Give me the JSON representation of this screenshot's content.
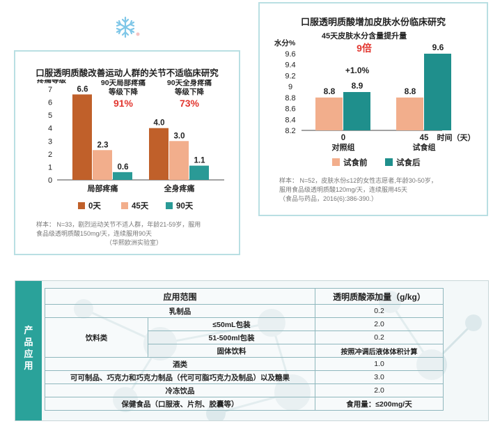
{
  "chart_data": [
    {
      "type": "bar",
      "title": "口服透明质酸改善运动人群的关节不适临床研究",
      "ylabel": "疼痛等级",
      "yticks": [
        "7",
        "6",
        "5",
        "4",
        "3",
        "2",
        "1",
        "0"
      ],
      "ylim": [
        0,
        7
      ],
      "categories": [
        "局部疼痛",
        "全身疼痛"
      ],
      "series": [
        {
          "name": "0天",
          "values": [
            6.6,
            4.0
          ],
          "labels": [
            "6.6",
            "4.0"
          ],
          "color": "#c0602a"
        },
        {
          "name": "45天",
          "values": [
            2.3,
            3.0
          ],
          "labels": [
            "2.3",
            "3.0"
          ],
          "color": "#f2ae8c"
        },
        {
          "name": "90天",
          "values": [
            0.6,
            1.1
          ],
          "labels": [
            "0.6",
            "1.1"
          ],
          "color": "#2a9a96"
        }
      ],
      "annotations": [
        {
          "text": "90天局部疼痛",
          "text2": "等级下降",
          "value": "91%"
        },
        {
          "text": "90天全身疼痛",
          "text2": "等级下降",
          "value": "73%"
        }
      ],
      "legend": "bottom",
      "notes": [
        "样本：  N=33，剧烈运动关节不适人群，年龄21-59岁，服用",
        "食品级透明质酸150mg/天，连续服用90天",
        "（华熙欧洲实验室）"
      ]
    },
    {
      "type": "bar",
      "title": "口服透明质酸增加皮肤水份临床研究",
      "ylabel": "水分%",
      "xlabel": "时间（天）",
      "yticks": [
        "9.6",
        "9.4",
        "9.2",
        "9",
        "8.8",
        "8.6",
        "8.4",
        "8.2"
      ],
      "ylim": [
        8.2,
        9.6
      ],
      "categories": [
        "0",
        "45"
      ],
      "category_sublabels": [
        "对照组",
        "试食组"
      ],
      "series": [
        {
          "name": "试食前",
          "values": [
            8.8,
            8.8
          ],
          "labels": [
            "8.8",
            "8.8"
          ],
          "color": "#f2ae8c"
        },
        {
          "name": "试食后",
          "values": [
            8.9,
            9.6
          ],
          "labels": [
            "8.9",
            "9.6"
          ],
          "color": "#1f8f8c"
        }
      ],
      "annotations": [
        {
          "text": "45天皮肤水分含量提升量",
          "value": "9倍"
        },
        {
          "text": "+1.0%"
        }
      ],
      "legend": "bottom",
      "notes": [
        "样本：  N=52，皮肤水份≤12的女性志愿者,年龄30-50岁，",
        "服用食品级透明质酸120mg/天，连续服用45天",
        "（食品与药品，2016(6):386-390.）"
      ]
    }
  ],
  "table": {
    "side_label": [
      "产",
      "品",
      "应",
      "用"
    ],
    "headers": [
      "应用范围",
      "透明质酸添加量（g/kg）"
    ],
    "rows": {
      "dairy": {
        "label": "乳制品",
        "value": "0.2"
      },
      "beverage_group": "饮料类",
      "bev1": {
        "label": "≤50mL包装",
        "value": "2.0"
      },
      "bev2": {
        "label": "51-500ml包装",
        "value": "0.2"
      },
      "bev3": {
        "label": "固体饮料",
        "value": "按照冲调后液体体积计算"
      },
      "wine": {
        "label": "酒类",
        "value": "1.0"
      },
      "cocoa": {
        "label": "可可制品、巧克力和巧克力制品（代可可脂巧克力及制品）以及糖果",
        "value": "3.0"
      },
      "frozen": {
        "label": "冷冻饮品",
        "value": "2.0"
      },
      "health": {
        "label": "保健食品（口服液、片剂、胶囊等）",
        "value": "食用量：≤200mg/天"
      }
    }
  }
}
